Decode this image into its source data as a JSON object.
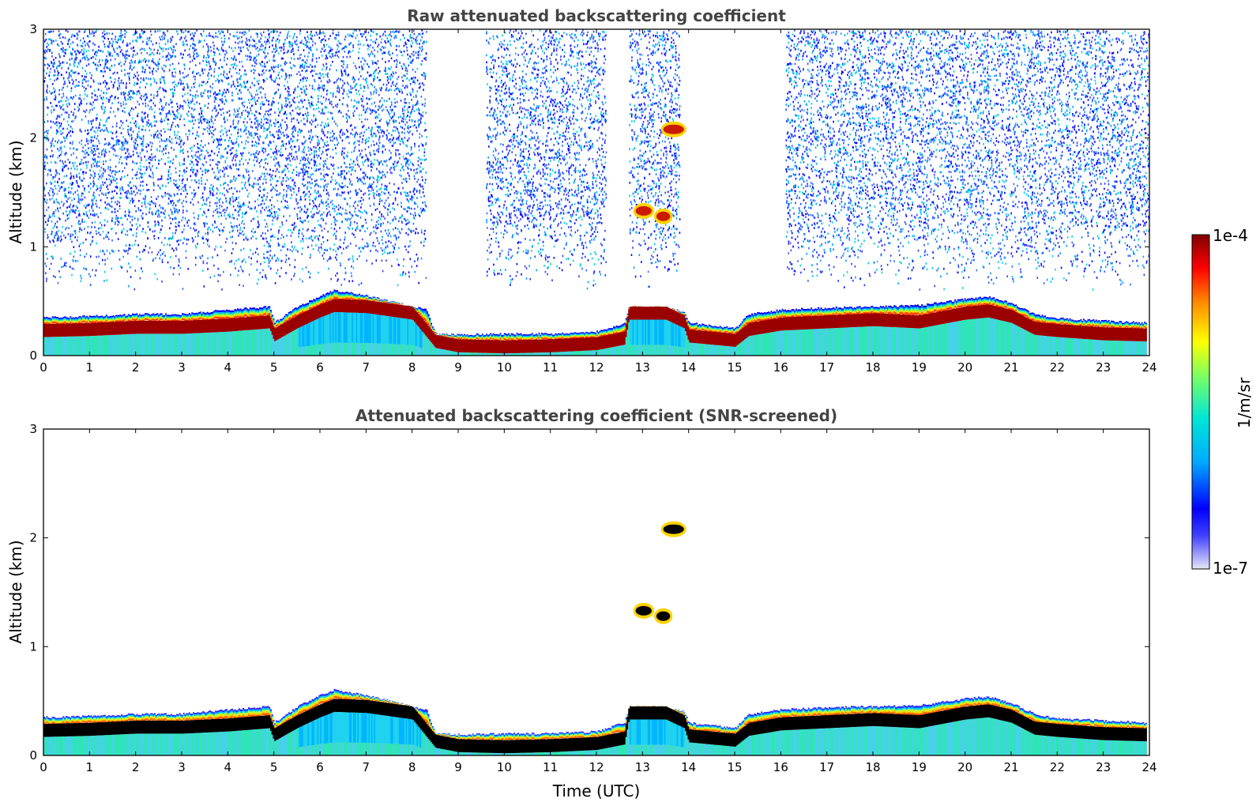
{
  "chart_data": [
    {
      "type": "heatmap",
      "title": "Raw attenuated backscattering coefficient",
      "xlabel": "",
      "ylabel": "Altitude (km)",
      "xlim": [
        0,
        24
      ],
      "ylim": [
        0,
        3
      ],
      "x_ticks": [
        "0",
        "1",
        "2",
        "3",
        "4",
        "5",
        "6",
        "7",
        "8",
        "9",
        "10",
        "11",
        "12",
        "13",
        "14",
        "15",
        "16",
        "17",
        "18",
        "19",
        "20",
        "21",
        "22",
        "23",
        "24"
      ],
      "y_ticks": [
        "0",
        "1",
        "2",
        "3"
      ],
      "layer_top_km": [
        [
          0,
          0.35
        ],
        [
          1,
          0.36
        ],
        [
          2,
          0.38
        ],
        [
          3,
          0.38
        ],
        [
          4,
          0.42
        ],
        [
          4.9,
          0.45
        ],
        [
          5,
          0.3
        ],
        [
          5.5,
          0.45
        ],
        [
          6,
          0.55
        ],
        [
          6.3,
          0.6
        ],
        [
          7,
          0.55
        ],
        [
          8,
          0.45
        ],
        [
          8.3,
          0.42
        ],
        [
          8.5,
          0.2
        ],
        [
          9,
          0.19
        ],
        [
          10,
          0.2
        ],
        [
          11,
          0.2
        ],
        [
          12,
          0.22
        ],
        [
          12.6,
          0.3
        ],
        [
          12.7,
          0.45
        ],
        [
          13.5,
          0.44
        ],
        [
          13.9,
          0.4
        ],
        [
          14,
          0.3
        ],
        [
          15,
          0.25
        ],
        [
          15.3,
          0.38
        ],
        [
          16,
          0.42
        ],
        [
          17,
          0.44
        ],
        [
          18,
          0.45
        ],
        [
          19,
          0.46
        ],
        [
          20,
          0.52
        ],
        [
          20.5,
          0.54
        ],
        [
          21,
          0.48
        ],
        [
          21.5,
          0.38
        ],
        [
          22,
          0.34
        ],
        [
          23,
          0.32
        ],
        [
          23.9,
          0.3
        ]
      ],
      "layer_core_km": [
        [
          0,
          0.22
        ],
        [
          1,
          0.23
        ],
        [
          2,
          0.25
        ],
        [
          3,
          0.25
        ],
        [
          4,
          0.27
        ],
        [
          4.9,
          0.3
        ],
        [
          5,
          0.18
        ],
        [
          5.5,
          0.3
        ],
        [
          6,
          0.4
        ],
        [
          6.3,
          0.45
        ],
        [
          7,
          0.44
        ],
        [
          8,
          0.38
        ],
        [
          8.5,
          0.12
        ],
        [
          9,
          0.08
        ],
        [
          10,
          0.07
        ],
        [
          11,
          0.08
        ],
        [
          12,
          0.1
        ],
        [
          12.6,
          0.15
        ],
        [
          12.7,
          0.38
        ],
        [
          13.5,
          0.38
        ],
        [
          13.9,
          0.3
        ],
        [
          14,
          0.17
        ],
        [
          15,
          0.13
        ],
        [
          15.3,
          0.23
        ],
        [
          16,
          0.28
        ],
        [
          17,
          0.3
        ],
        [
          18,
          0.32
        ],
        [
          19,
          0.3
        ],
        [
          20,
          0.38
        ],
        [
          20.5,
          0.4
        ],
        [
          21,
          0.35
        ],
        [
          21.5,
          0.24
        ],
        [
          22,
          0.22
        ],
        [
          23,
          0.19
        ],
        [
          23.9,
          0.18
        ]
      ],
      "clouds": [
        {
          "x": [
            12.85,
            13.2
          ],
          "altitude_km": 1.33
        },
        {
          "x": [
            13.3,
            13.6
          ],
          "altitude_km": 1.28
        },
        {
          "x": [
            13.45,
            13.9
          ],
          "altitude_km": 2.08
        }
      ],
      "noise_regions": [
        [
          0,
          8.3
        ],
        [
          9.6,
          12.2
        ],
        [
          12.7,
          13.8
        ],
        [
          16.1,
          24
        ]
      ]
    },
    {
      "type": "heatmap",
      "title": "Attenuated backscattering coefficient (SNR-screened)",
      "xlabel": "Time (UTC)",
      "ylabel": "Altitude (km)",
      "xlim": [
        0,
        24
      ],
      "ylim": [
        0,
        3
      ],
      "x_ticks": [
        "0",
        "1",
        "2",
        "3",
        "4",
        "5",
        "6",
        "7",
        "8",
        "9",
        "10",
        "11",
        "12",
        "13",
        "14",
        "15",
        "16",
        "17",
        "18",
        "19",
        "20",
        "21",
        "22",
        "23",
        "24"
      ],
      "y_ticks": [
        "0",
        "1",
        "2",
        "3"
      ],
      "saturated_color": "#000000"
    }
  ],
  "colorbar": {
    "label": "1/m/sr",
    "max_label": "1e-4",
    "min_label": "1e-7",
    "scale": "log",
    "range": [
      1e-07,
      0.0001
    ],
    "colormap": [
      "#e6e6f8",
      "#0000ff",
      "#00aaff",
      "#00e6d6",
      "#80ff60",
      "#ffff00",
      "#ff8800",
      "#ff0000",
      "#800000"
    ]
  }
}
